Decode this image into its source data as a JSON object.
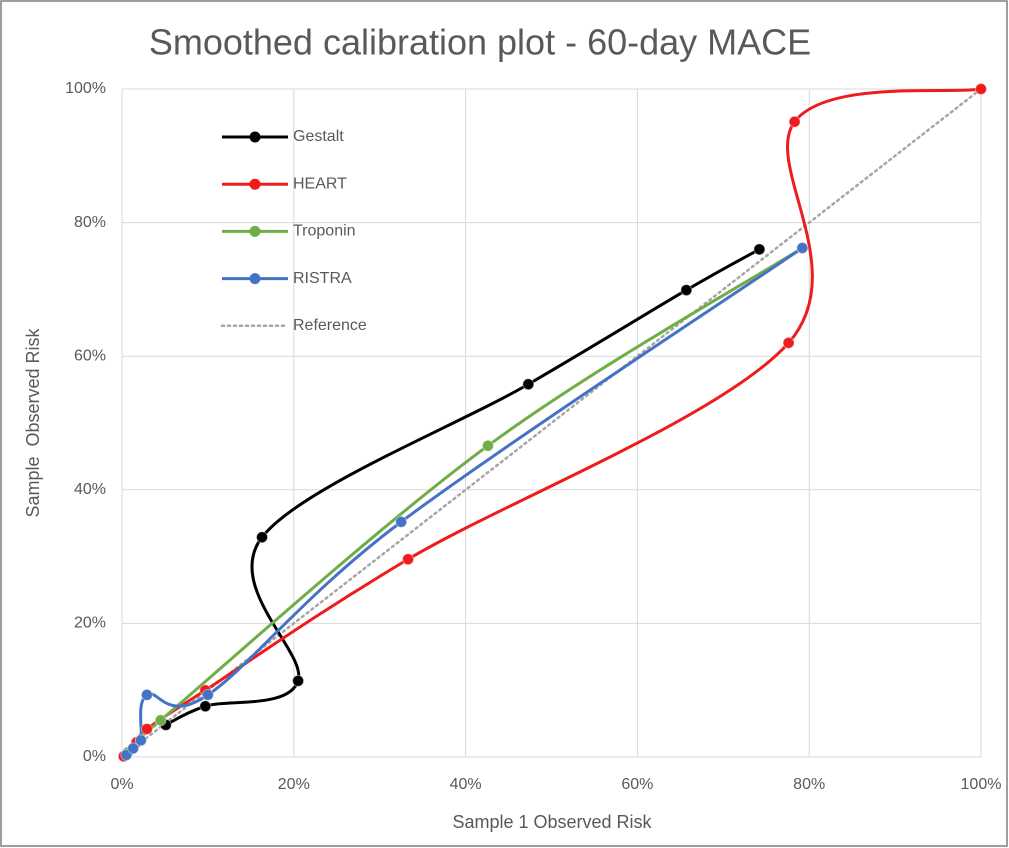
{
  "chart_data": {
    "type": "scatter",
    "smooth": true,
    "title": "Smoothed calibration plot - 60-day MACE",
    "x_label": "Sample 1 Observed Risk",
    "y_label": "Sample  Observed Risk",
    "xlim": [
      0,
      100
    ],
    "ylim": [
      0,
      100
    ],
    "xticks": [
      {
        "value": 0,
        "label": "0%"
      },
      {
        "value": 20,
        "label": "20%"
      },
      {
        "value": 40,
        "label": "40%"
      },
      {
        "value": 60,
        "label": "60%"
      },
      {
        "value": 80,
        "label": "80%"
      },
      {
        "value": 100,
        "label": "100%"
      }
    ],
    "yticks": [
      {
        "value": 0,
        "label": "0%"
      },
      {
        "value": 20,
        "label": "20%"
      },
      {
        "value": 40,
        "label": "40%"
      },
      {
        "value": 60,
        "label": "60%"
      },
      {
        "value": 80,
        "label": "80%"
      },
      {
        "value": 100,
        "label": "100%"
      }
    ],
    "grid": true,
    "legend": "upper left",
    "series": [
      {
        "name": "Gestalt",
        "color": "#000000",
        "markers": true,
        "style": "solid",
        "x": [
          5.1,
          9.7,
          20.5,
          16.3,
          47.3,
          65.7,
          74.2
        ],
        "values": [
          4.8,
          7.6,
          11.4,
          32.9,
          55.8,
          69.9,
          76.0
        ]
      },
      {
        "name": "HEART",
        "color": "#ee1c1c",
        "markers": true,
        "style": "solid",
        "x": [
          0.2,
          1.7,
          2.9,
          9.7,
          33.3,
          77.6,
          78.3,
          100
        ],
        "values": [
          0.1,
          2.2,
          4.2,
          10.0,
          29.6,
          62.0,
          95.1,
          100
        ]
      },
      {
        "name": "Troponin",
        "color": "#70ad47",
        "markers": true,
        "style": "solid",
        "x": [
          0.7,
          2.2,
          4.5,
          42.6,
          79.2
        ],
        "values": [
          0.7,
          2.5,
          5.5,
          46.6,
          76.2
        ]
      },
      {
        "name": "RISTRA",
        "color": "#4472c4",
        "markers": true,
        "style": "solid",
        "x": [
          0.5,
          1.3,
          2.2,
          2.9,
          10.0,
          32.5,
          79.2
        ],
        "values": [
          0.3,
          1.3,
          2.5,
          9.3,
          9.3,
          35.2,
          76.2
        ]
      },
      {
        "name": "Reference",
        "color": "#a6a6a6",
        "markers": false,
        "style": "dotted",
        "x": [
          0,
          100
        ],
        "values": [
          0,
          100
        ]
      }
    ]
  }
}
